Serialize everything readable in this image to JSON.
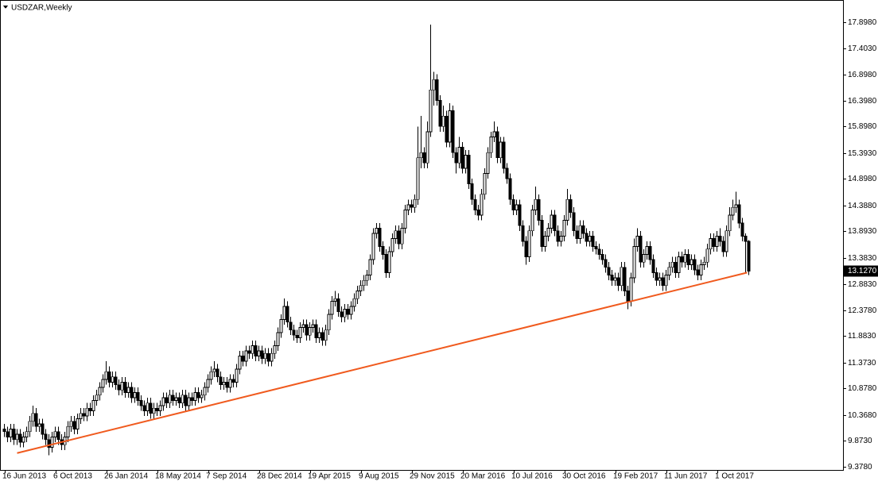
{
  "chart_data": {
    "type": "candlestick",
    "title": "USDZAR,Weekly",
    "categories": [
      "16 Jun 2013",
      null,
      null,
      null,
      null,
      null,
      null,
      null,
      null,
      null,
      null,
      null,
      null,
      null,
      null,
      null,
      "6 Oct 2013",
      null,
      null,
      null,
      null,
      null,
      null,
      null,
      null,
      null,
      null,
      null,
      null,
      null,
      null,
      null,
      "26 Jan 2014",
      null,
      null,
      null,
      null,
      null,
      null,
      null,
      null,
      null,
      null,
      null,
      null,
      null,
      null,
      null,
      "18 May 2014",
      null,
      null,
      null,
      null,
      null,
      null,
      null,
      null,
      null,
      null,
      null,
      null,
      null,
      null,
      null,
      "7 Sep 2014",
      null,
      null,
      null,
      null,
      null,
      null,
      null,
      null,
      null,
      null,
      null,
      null,
      null,
      null,
      null,
      "28 Dec 2014",
      null,
      null,
      null,
      null,
      null,
      null,
      null,
      null,
      null,
      null,
      null,
      null,
      null,
      null,
      null,
      "19 Apr 2015",
      null,
      null,
      null,
      null,
      null,
      null,
      null,
      null,
      null,
      null,
      null,
      null,
      null,
      null,
      null,
      "9 Aug 2015",
      null,
      null,
      null,
      null,
      null,
      null,
      null,
      null,
      null,
      null,
      null,
      null,
      null,
      null,
      null,
      "29 Nov 2015",
      null,
      null,
      null,
      null,
      null,
      null,
      null,
      null,
      null,
      null,
      null,
      null,
      null,
      null,
      null,
      "20 Mar 2016",
      null,
      null,
      null,
      null,
      null,
      null,
      null,
      null,
      null,
      null,
      null,
      null,
      null,
      null,
      null,
      "10 Jul 2016",
      null,
      null,
      null,
      null,
      null,
      null,
      null,
      null,
      null,
      null,
      null,
      null,
      null,
      null,
      null,
      "30 Oct 2016",
      null,
      null,
      null,
      null,
      null,
      null,
      null,
      null,
      null,
      null,
      null,
      null,
      null,
      null,
      null,
      "19 Feb 2017",
      null,
      null,
      null,
      null,
      null,
      null,
      null,
      null,
      null,
      null,
      null,
      null,
      null,
      null,
      null,
      "11 Jun 2017",
      null,
      null,
      null,
      null,
      null,
      null,
      null,
      null,
      null,
      null,
      null,
      null,
      null,
      null,
      null,
      "1 Oct 2017",
      null,
      null,
      null,
      null,
      null,
      null,
      null,
      null,
      null,
      null
    ],
    "open": [
      10.1,
      10.05,
      9.95,
      10.1,
      9.9,
      10.0,
      9.85,
      9.95,
      10.05,
      10.25,
      10.4,
      10.15,
      10.2,
      10.0,
      9.9,
      9.75,
      9.95,
      10.05,
      9.9,
      9.8,
      9.95,
      10.15,
      10.25,
      10.1,
      10.3,
      10.4,
      10.35,
      10.5,
      10.45,
      10.65,
      10.75,
      10.9,
      11.05,
      11.2,
      11.0,
      11.1,
      10.95,
      10.85,
      11.0,
      10.8,
      10.9,
      10.7,
      10.8,
      10.65,
      10.55,
      10.45,
      10.6,
      10.4,
      10.5,
      10.45,
      10.55,
      10.7,
      10.6,
      10.75,
      10.65,
      10.7,
      10.6,
      10.75,
      10.55,
      10.7,
      10.65,
      10.8,
      10.7,
      10.75,
      10.9,
      11.05,
      11.2,
      11.25,
      11.1,
      10.95,
      11.0,
      10.9,
      11.05,
      11.0,
      11.25,
      11.5,
      11.4,
      11.6,
      11.55,
      11.7,
      11.5,
      11.6,
      11.45,
      11.55,
      11.4,
      11.55,
      11.7,
      11.95,
      12.2,
      12.45,
      12.15,
      12.0,
      11.9,
      11.85,
      12.05,
      12.1,
      11.9,
      12.05,
      12.1,
      11.85,
      11.95,
      11.8,
      12.0,
      12.3,
      12.55,
      12.6,
      12.35,
      12.25,
      12.4,
      12.3,
      12.45,
      12.6,
      12.75,
      12.85,
      12.95,
      13.05,
      13.35,
      13.85,
      13.95,
      13.6,
      13.45,
      13.1,
      13.5,
      13.75,
      13.9,
      13.65,
      13.95,
      14.3,
      14.4,
      14.35,
      14.5,
      15.3,
      15.4,
      15.2,
      15.8,
      16.6,
      16.8,
      16.4,
      15.9,
      16.1,
      15.6,
      16.2,
      15.4,
      15.2,
      15.5,
      15.1,
      15.35,
      14.8,
      14.5,
      14.3,
      14.2,
      14.6,
      15.0,
      15.4,
      15.7,
      15.8,
      15.3,
      15.6,
      15.1,
      14.9,
      14.5,
      14.3,
      14.4,
      14.0,
      13.7,
      13.4,
      13.9,
      14.3,
      14.5,
      14.1,
      13.6,
      13.8,
      13.95,
      14.2,
      13.9,
      13.7,
      13.8,
      14.1,
      14.5,
      14.25,
      13.9,
      13.75,
      14.0,
      13.85,
      13.7,
      13.8,
      13.6,
      13.55,
      13.45,
      13.35,
      13.2,
      13.05,
      12.95,
      13.0,
      12.85,
      13.2,
      12.75,
      12.55,
      13.0,
      13.6,
      13.8,
      13.3,
      13.45,
      13.6,
      13.35,
      13.1,
      12.95,
      13.0,
      12.85,
      13.05,
      13.2,
      13.3,
      13.1,
      13.4,
      13.3,
      13.45,
      13.25,
      13.35,
      13.15,
      13.05,
      13.25,
      13.3,
      13.55,
      13.75,
      13.6,
      13.8,
      13.7,
      13.5,
      13.9,
      14.2,
      14.35,
      14.4,
      14.05,
      13.8,
      13.7
    ],
    "high": [
      10.2,
      10.15,
      10.2,
      10.2,
      10.1,
      10.1,
      10.05,
      10.15,
      10.35,
      10.55,
      10.5,
      10.3,
      10.3,
      10.1,
      10.0,
      10.05,
      10.15,
      10.15,
      10.0,
      10.05,
      10.25,
      10.35,
      10.35,
      10.4,
      10.5,
      10.5,
      10.6,
      10.6,
      10.75,
      10.85,
      11.0,
      11.15,
      11.4,
      11.3,
      11.2,
      11.2,
      11.05,
      11.1,
      11.1,
      11.0,
      11.0,
      10.9,
      10.9,
      10.75,
      10.65,
      10.7,
      10.7,
      10.6,
      10.6,
      10.65,
      10.8,
      10.8,
      10.85,
      10.85,
      10.8,
      10.8,
      10.85,
      10.85,
      10.8,
      10.8,
      10.9,
      10.9,
      10.85,
      11.0,
      11.15,
      11.3,
      11.4,
      11.35,
      11.2,
      11.1,
      11.1,
      11.15,
      11.15,
      11.35,
      11.6,
      11.6,
      11.7,
      11.7,
      11.8,
      11.8,
      11.7,
      11.7,
      11.65,
      11.65,
      11.65,
      11.8,
      12.05,
      12.3,
      12.6,
      12.55,
      12.25,
      12.1,
      12.0,
      12.15,
      12.2,
      12.2,
      12.15,
      12.2,
      12.2,
      12.05,
      12.05,
      12.1,
      12.4,
      12.65,
      12.75,
      12.7,
      12.45,
      12.5,
      12.5,
      12.55,
      12.7,
      12.85,
      12.95,
      13.05,
      13.15,
      13.45,
      13.95,
      14.05,
      14.05,
      13.7,
      13.55,
      13.6,
      13.85,
      14.0,
      14.0,
      14.05,
      14.4,
      14.5,
      14.5,
      14.6,
      15.9,
      16.1,
      15.5,
      16.0,
      17.85,
      16.95,
      16.9,
      16.5,
      16.3,
      16.2,
      16.35,
      16.3,
      15.5,
      15.7,
      15.6,
      15.45,
      15.45,
      14.9,
      14.6,
      14.4,
      14.7,
      15.1,
      15.5,
      15.8,
      16.0,
      15.9,
      15.7,
      15.7,
      15.2,
      15.0,
      14.6,
      14.5,
      14.5,
      14.1,
      13.8,
      14.0,
      14.4,
      14.75,
      14.6,
      14.2,
      13.9,
      14.05,
      14.3,
      14.3,
      14.0,
      13.9,
      14.2,
      14.7,
      14.6,
      14.35,
      14.0,
      14.1,
      14.1,
      13.95,
      13.9,
      13.9,
      13.7,
      13.65,
      13.55,
      13.45,
      13.3,
      13.15,
      13.1,
      13.1,
      13.3,
      13.3,
      12.85,
      13.1,
      13.75,
      13.95,
      13.9,
      13.55,
      13.7,
      13.7,
      13.45,
      13.2,
      13.1,
      13.1,
      13.15,
      13.3,
      13.4,
      13.4,
      13.5,
      13.5,
      13.55,
      13.55,
      13.45,
      13.45,
      13.25,
      13.35,
      13.4,
      13.65,
      13.85,
      13.85,
      13.9,
      13.95,
      13.8,
      14.0,
      14.35,
      14.5,
      14.65,
      14.5,
      14.15,
      13.85,
      13.72
    ],
    "low": [
      9.95,
      9.85,
      9.85,
      9.8,
      9.8,
      9.75,
      9.75,
      9.85,
      9.95,
      10.15,
      10.05,
      10.05,
      9.9,
      9.8,
      9.6,
      9.65,
      9.85,
      9.8,
      9.7,
      9.7,
      9.85,
      10.05,
      10.0,
      10.0,
      10.2,
      10.25,
      10.25,
      10.35,
      10.35,
      10.55,
      10.65,
      10.8,
      10.95,
      10.9,
      10.9,
      10.85,
      10.75,
      10.75,
      10.7,
      10.7,
      10.6,
      10.6,
      10.55,
      10.45,
      10.35,
      10.35,
      10.3,
      10.3,
      10.35,
      10.35,
      10.45,
      10.5,
      10.5,
      10.55,
      10.55,
      10.5,
      10.5,
      10.45,
      10.45,
      10.55,
      10.55,
      10.6,
      10.6,
      10.65,
      10.8,
      10.95,
      11.1,
      11.0,
      10.85,
      10.85,
      10.8,
      10.8,
      10.9,
      10.9,
      11.15,
      11.3,
      11.3,
      11.45,
      11.45,
      11.4,
      11.4,
      11.35,
      11.35,
      11.3,
      11.3,
      11.45,
      11.6,
      11.85,
      12.1,
      12.05,
      11.9,
      11.8,
      11.75,
      11.75,
      11.95,
      11.8,
      11.8,
      11.95,
      11.75,
      11.75,
      11.7,
      11.7,
      11.9,
      12.2,
      12.45,
      12.25,
      12.15,
      12.15,
      12.2,
      12.2,
      12.35,
      12.5,
      12.65,
      12.75,
      12.85,
      12.95,
      13.25,
      13.75,
      13.5,
      13.35,
      13.0,
      13.0,
      13.4,
      13.65,
      13.55,
      13.55,
      13.85,
      14.2,
      14.25,
      14.25,
      14.4,
      15.1,
      15.1,
      15.1,
      15.7,
      16.3,
      16.3,
      15.8,
      15.8,
      15.5,
      15.5,
      15.3,
      15.0,
      15.1,
      15.0,
      15.0,
      14.7,
      14.4,
      14.2,
      14.1,
      14.1,
      14.5,
      14.9,
      15.3,
      15.6,
      15.2,
      15.2,
      15.0,
      14.8,
      14.4,
      14.2,
      14.2,
      13.9,
      13.6,
      13.25,
      13.3,
      13.8,
      14.2,
      14.0,
      13.5,
      13.5,
      13.7,
      13.85,
      13.8,
      13.6,
      13.6,
      13.7,
      14.0,
      14.15,
      13.8,
      13.65,
      13.65,
      13.75,
      13.6,
      13.6,
      13.5,
      13.45,
      13.35,
      13.25,
      13.1,
      12.95,
      12.85,
      12.85,
      12.75,
      12.75,
      12.65,
      12.4,
      12.45,
      12.9,
      13.5,
      13.2,
      13.2,
      13.35,
      13.25,
      13.0,
      12.85,
      12.85,
      12.75,
      12.75,
      12.95,
      13.1,
      13.0,
      13.0,
      13.2,
      13.2,
      13.15,
      13.15,
      13.05,
      12.95,
      12.95,
      13.15,
      13.2,
      13.45,
      13.5,
      13.5,
      13.6,
      13.4,
      13.4,
      13.8,
      14.1,
      14.25,
      13.95,
      13.7,
      13.1,
      13.05
    ],
    "close": [
      10.05,
      9.95,
      10.1,
      9.9,
      10.0,
      9.85,
      9.95,
      10.05,
      10.25,
      10.4,
      10.15,
      10.2,
      10.0,
      9.9,
      9.75,
      9.95,
      10.05,
      9.9,
      9.8,
      9.95,
      10.15,
      10.25,
      10.1,
      10.3,
      10.4,
      10.35,
      10.5,
      10.45,
      10.65,
      10.75,
      10.9,
      11.05,
      11.2,
      11.0,
      11.1,
      10.95,
      10.85,
      11.0,
      10.8,
      10.9,
      10.7,
      10.8,
      10.65,
      10.55,
      10.45,
      10.6,
      10.4,
      10.5,
      10.45,
      10.55,
      10.7,
      10.6,
      10.75,
      10.65,
      10.7,
      10.6,
      10.75,
      10.55,
      10.7,
      10.65,
      10.8,
      10.7,
      10.75,
      10.9,
      11.05,
      11.2,
      11.25,
      11.1,
      10.95,
      11.0,
      10.9,
      11.05,
      11.0,
      11.25,
      11.5,
      11.4,
      11.6,
      11.55,
      11.7,
      11.5,
      11.6,
      11.45,
      11.55,
      11.4,
      11.55,
      11.7,
      11.95,
      12.2,
      12.45,
      12.15,
      12.0,
      11.9,
      11.85,
      12.05,
      12.1,
      11.9,
      12.05,
      12.1,
      11.85,
      11.95,
      11.8,
      12.0,
      12.3,
      12.55,
      12.6,
      12.35,
      12.25,
      12.4,
      12.3,
      12.45,
      12.6,
      12.75,
      12.85,
      12.95,
      13.05,
      13.35,
      13.85,
      13.95,
      13.6,
      13.45,
      13.1,
      13.5,
      13.75,
      13.9,
      13.65,
      13.95,
      14.3,
      14.4,
      14.35,
      14.5,
      15.3,
      15.4,
      15.2,
      15.8,
      16.6,
      16.8,
      16.4,
      15.9,
      16.1,
      15.6,
      16.2,
      15.4,
      15.2,
      15.5,
      15.1,
      15.35,
      14.8,
      14.5,
      14.3,
      14.2,
      14.6,
      15.0,
      15.4,
      15.7,
      15.8,
      15.3,
      15.6,
      15.1,
      14.9,
      14.5,
      14.3,
      14.4,
      14.0,
      13.7,
      13.4,
      13.9,
      14.3,
      14.5,
      14.1,
      13.6,
      13.8,
      13.95,
      14.2,
      13.9,
      13.7,
      13.8,
      14.1,
      14.5,
      14.25,
      13.9,
      13.75,
      14.0,
      13.85,
      13.7,
      13.8,
      13.6,
      13.55,
      13.45,
      13.35,
      13.2,
      13.05,
      12.95,
      13.0,
      12.85,
      13.2,
      12.75,
      12.55,
      13.0,
      13.6,
      13.8,
      13.3,
      13.45,
      13.6,
      13.35,
      13.1,
      12.95,
      13.0,
      12.85,
      13.05,
      13.2,
      13.3,
      13.1,
      13.4,
      13.3,
      13.45,
      13.25,
      13.35,
      13.15,
      13.05,
      13.25,
      13.3,
      13.55,
      13.75,
      13.6,
      13.8,
      13.7,
      13.5,
      13.9,
      14.2,
      14.35,
      14.4,
      14.05,
      13.8,
      13.7,
      13.13
    ],
    "color": "#000000",
    "up_color": "#ffffff",
    "down_color": "#000000",
    "ylim": [
      9.317,
      18.309
    ],
    "yticks": [
      {
        "value": 17.898,
        "label": "17.8980"
      },
      {
        "value": 17.403,
        "label": "17.4030"
      },
      {
        "value": 16.898,
        "label": "16.8980"
      },
      {
        "value": 16.398,
        "label": "16.3980"
      },
      {
        "value": 15.898,
        "label": "15.8980"
      },
      {
        "value": 15.393,
        "label": "15.3930"
      },
      {
        "value": 14.898,
        "label": "14.8980"
      },
      {
        "value": 14.388,
        "label": "14.3880"
      },
      {
        "value": 13.893,
        "label": "13.8930"
      },
      {
        "value": 13.383,
        "label": "13.3830"
      },
      {
        "value": 12.883,
        "label": "12.8830"
      },
      {
        "value": 12.378,
        "label": "12.3780"
      },
      {
        "value": 11.883,
        "label": "11.8830"
      },
      {
        "value": 11.373,
        "label": "11.3730"
      },
      {
        "value": 10.878,
        "label": "10.8780"
      },
      {
        "value": 10.368,
        "label": "10.3680"
      },
      {
        "value": 9.873,
        "label": "9.8730"
      },
      {
        "value": 9.378,
        "label": "9.3780"
      }
    ],
    "current_price": {
      "value": 13.127,
      "label": "13.1270"
    },
    "trendline": {
      "color": "#f05a1e",
      "values": [
        9.64,
        13.1
      ]
    },
    "grid": false
  }
}
